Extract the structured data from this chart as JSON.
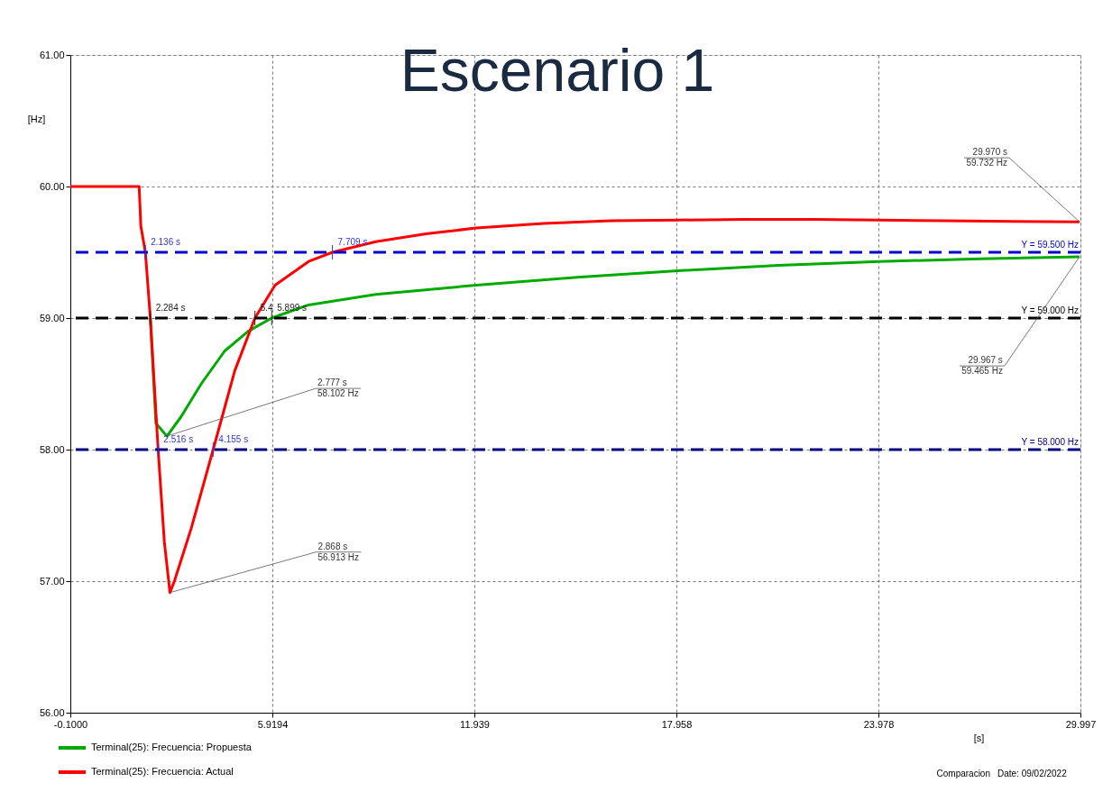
{
  "chart_data": {
    "type": "line",
    "title": "Escenario 1",
    "xlabel": "[s]",
    "ylabel": "[Hz]",
    "xlim": [
      -0.1,
      29.997
    ],
    "ylim": [
      56,
      61
    ],
    "xticks": [
      {
        "value": -0.1,
        "label": "-0.1000"
      },
      5.9194,
      11.939,
      17.958,
      23.978,
      29.997
    ],
    "yticks": [
      {
        "value": 56,
        "label": "56.00"
      },
      {
        "value": 57,
        "label": "57.00"
      },
      {
        "value": 58,
        "label": "58.00"
      },
      {
        "value": 59,
        "label": "59.00"
      },
      {
        "value": 60,
        "label": "60.00"
      },
      {
        "value": 61,
        "label": "61.00"
      }
    ],
    "grid": true,
    "legend": "bottom",
    "marker": "none",
    "line_style": "solid",
    "series": [
      {
        "name": "Terminal(25): Frecuencia: Propuesta",
        "color": "#00aa00",
        "x": [
          2.284,
          2.45,
          2.777,
          3.2,
          3.8,
          4.5,
          5.2,
          5.899,
          7.0,
          9.0,
          12.0,
          15.0,
          18.0,
          21.0,
          24.0,
          27.0,
          29.967
        ],
        "values": [
          59.0,
          58.2,
          58.102,
          58.25,
          58.5,
          58.75,
          58.9,
          59.0,
          59.1,
          59.18,
          59.25,
          59.31,
          59.36,
          59.4,
          59.43,
          59.45,
          59.465
        ]
      },
      {
        "name": "Terminal(25): Frecuencia: Actual",
        "color": "#ff0000",
        "x": [
          -0.1,
          1.95,
          2.0,
          2.136,
          2.284,
          2.516,
          2.7,
          2.868,
          3.0,
          3.5,
          4.155,
          4.8,
          5.4,
          6.0,
          7.0,
          7.709,
          9.0,
          10.5,
          12.0,
          14.0,
          16.0,
          18.0,
          20.0,
          22.0,
          24.0,
          26.0,
          28.0,
          29.97
        ],
        "values": [
          60.0,
          60.0,
          59.7,
          59.5,
          59.0,
          58.0,
          57.3,
          56.913,
          57.0,
          57.4,
          58.0,
          58.6,
          59.0,
          59.25,
          59.43,
          59.5,
          59.58,
          59.64,
          59.685,
          59.72,
          59.74,
          59.745,
          59.75,
          59.75,
          59.745,
          59.74,
          59.735,
          59.732
        ]
      }
    ],
    "ref_lines": [
      {
        "axis": "y",
        "value": 59.5,
        "label": "Y = 59.500 Hz",
        "color": "#0000cc",
        "line_style": "dashed"
      },
      {
        "axis": "y",
        "value": 59.0,
        "label": "Y = 59.000 Hz",
        "color": "#000000",
        "line_style": "dashed"
      },
      {
        "axis": "y",
        "value": 58.0,
        "label": "Y = 58.000 Hz",
        "color": "#000080",
        "line_style": "dashed"
      }
    ],
    "annotations": [
      {
        "text": "2.136 s",
        "x": 2.136,
        "y": 59.5
      },
      {
        "text": "7.709 s",
        "x": 7.709,
        "y": 59.5
      },
      {
        "text": "2.284 s",
        "x": 2.284,
        "y": 59.0
      },
      {
        "text": "5.4",
        "x": 5.4,
        "y": 59.0
      },
      {
        "text": "5.899 s",
        "x": 5.899,
        "y": 59.0
      },
      {
        "text": "2.516 s",
        "x": 2.516,
        "y": 58.0
      },
      {
        "text": "4.155 s",
        "x": 4.155,
        "y": 58.0
      },
      {
        "text": "2.777 s",
        "x": 2.777,
        "y": 58.102
      },
      {
        "text": "58.102 Hz",
        "x": 2.777,
        "y": 58.102
      },
      {
        "text": "2.868 s",
        "x": 2.868,
        "y": 56.913
      },
      {
        "text": "56.913 Hz",
        "x": 2.868,
        "y": 56.913
      },
      {
        "text": "29.970 s",
        "x": 29.97,
        "y": 59.732
      },
      {
        "text": "59.732 Hz",
        "x": 29.97,
        "y": 59.732
      },
      {
        "text": "29.967 s",
        "x": 29.967,
        "y": 59.465
      },
      {
        "text": "59.465 Hz",
        "x": 29.967,
        "y": 59.465
      },
      "Comparacion",
      "Date: 09/02/2022"
    ]
  }
}
